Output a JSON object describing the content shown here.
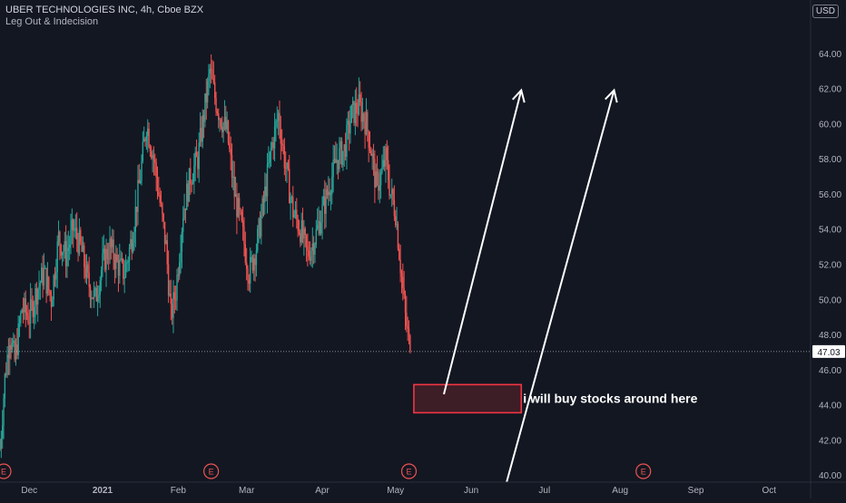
{
  "header": {
    "title": "UBER TECHNOLOGIES INC, 4h, Cboe BZX",
    "indicator": "Leg Out &  Indecision",
    "currency": "USD"
  },
  "price_label": "47.03",
  "annotation": {
    "text": "i will buy stocks around here"
  },
  "earnings_marker": "E",
  "colors": {
    "background": "#131722",
    "up": "#26a69a",
    "down": "#ef5350",
    "axis_text": "#b2b5be",
    "price_badge": "#ffffff",
    "zone_fill": "#3d1d26",
    "zone_stroke": "#f23645",
    "arrow": "#ffffff"
  },
  "chart_data": {
    "type": "candlestick",
    "title": "UBER TECHNOLOGIES INC, 4h, Cboe BZX",
    "ylim": [
      39.6,
      66.0
    ],
    "xlim_days": [
      0,
      332
    ],
    "y_ticks": [
      "40.00",
      "42.00",
      "44.00",
      "46.00",
      "48.00",
      "50.00",
      "52.00",
      "54.00",
      "56.00",
      "58.00",
      "60.00",
      "62.00",
      "64.00"
    ],
    "x_ticks": [
      {
        "label": "Dec",
        "day": 12
      },
      {
        "label": "2021",
        "day": 42
      },
      {
        "label": "Feb",
        "day": 73
      },
      {
        "label": "Mar",
        "day": 101
      },
      {
        "label": "Apr",
        "day": 132
      },
      {
        "label": "May",
        "day": 162
      },
      {
        "label": "Jun",
        "day": 193
      },
      {
        "label": "Jul",
        "day": 223
      },
      {
        "label": "Aug",
        "day": 254
      },
      {
        "label": "Sep",
        "day": 285
      },
      {
        "label": "Oct",
        "day": 315
      }
    ],
    "earnings_days": [
      0,
      85,
      166,
      262
    ],
    "last_price": 47.03,
    "price_path": [
      [
        0,
        41.5
      ],
      [
        2,
        45.5
      ],
      [
        4,
        48.0
      ],
      [
        6,
        46.5
      ],
      [
        9,
        49.5
      ],
      [
        12,
        49.0
      ],
      [
        15,
        50.5
      ],
      [
        18,
        51.5
      ],
      [
        21,
        50.0
      ],
      [
        24,
        53.5
      ],
      [
        27,
        52.5
      ],
      [
        30,
        54.0
      ],
      [
        33,
        53.0
      ],
      [
        36,
        51.0
      ],
      [
        39,
        50.0
      ],
      [
        42,
        52.0
      ],
      [
        45,
        53.0
      ],
      [
        48,
        52.0
      ],
      [
        51,
        51.5
      ],
      [
        54,
        53.5
      ],
      [
        57,
        56.5
      ],
      [
        60,
        60.0
      ],
      [
        63,
        58.0
      ],
      [
        66,
        55.0
      ],
      [
        68,
        53.0
      ],
      [
        70,
        49.0
      ],
      [
        72,
        50.5
      ],
      [
        75,
        55.0
      ],
      [
        78,
        57.0
      ],
      [
        81,
        58.0
      ],
      [
        84,
        61.0
      ],
      [
        86,
        63.0
      ],
      [
        88,
        61.5
      ],
      [
        90,
        60.5
      ],
      [
        93,
        59.5
      ],
      [
        96,
        56.0
      ],
      [
        99,
        54.0
      ],
      [
        102,
        51.5
      ],
      [
        105,
        53.0
      ],
      [
        108,
        55.5
      ],
      [
        111,
        58.5
      ],
      [
        114,
        60.5
      ],
      [
        117,
        57.5
      ],
      [
        120,
        55.0
      ],
      [
        123,
        54.0
      ],
      [
        126,
        52.5
      ],
      [
        129,
        53.5
      ],
      [
        132,
        55.0
      ],
      [
        135,
        56.5
      ],
      [
        138,
        58.0
      ],
      [
        141,
        58.5
      ],
      [
        144,
        60.5
      ],
      [
        147,
        61.0
      ],
      [
        150,
        60.0
      ],
      [
        152,
        58.5
      ],
      [
        154,
        56.5
      ],
      [
        156,
        57.0
      ],
      [
        158,
        58.0
      ],
      [
        160,
        56.0
      ],
      [
        162,
        55.0
      ],
      [
        164,
        52.0
      ],
      [
        166,
        49.0
      ],
      [
        168,
        47.03
      ]
    ]
  }
}
